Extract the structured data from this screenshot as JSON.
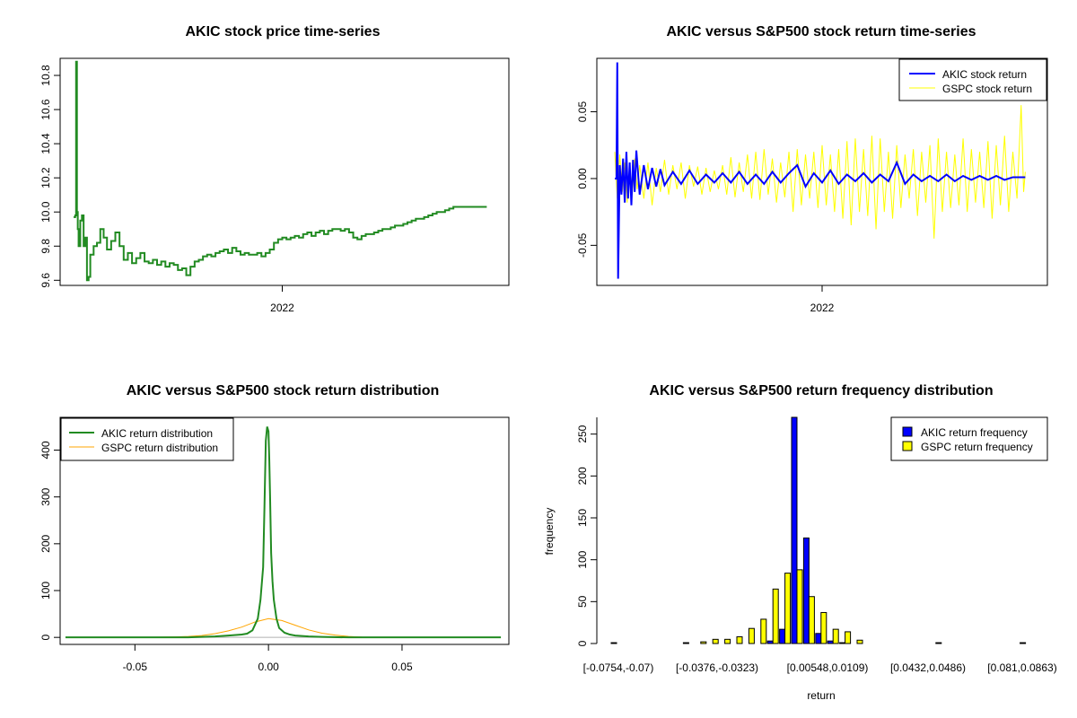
{
  "chart_data": [
    {
      "type": "line",
      "title": "AKIC stock price time-series",
      "xlabel": "",
      "ylabel": "",
      "xlim": [
        0,
        500
      ],
      "ylim": [
        9.57,
        10.9
      ],
      "x_tick_labels": [
        {
          "x": 250,
          "label": "2022"
        }
      ],
      "y_ticks": [
        9.6,
        9.8,
        10.0,
        10.2,
        10.4,
        10.6,
        10.8
      ],
      "y_tick_labels": [
        "9.6",
        "9.8",
        "10.0",
        "10.2",
        "10.4",
        "10.6",
        "10.8"
      ],
      "colors": {
        "line": "#228b22"
      },
      "series": [
        {
          "x": [
            0,
            2,
            3,
            4,
            5,
            6,
            8,
            10,
            12,
            14,
            16,
            18,
            20,
            24,
            28,
            32,
            36,
            40,
            45,
            50,
            55,
            60,
            65,
            70,
            75,
            80,
            85,
            90,
            95,
            100,
            105,
            110,
            115,
            120,
            125,
            130,
            135,
            140,
            145,
            150,
            155,
            160,
            165,
            170,
            175,
            180,
            185,
            190,
            195,
            200,
            205,
            210,
            215,
            220,
            225,
            230,
            235,
            240,
            245,
            250,
            255,
            260,
            265,
            270,
            275,
            280,
            285,
            290,
            295,
            300,
            305,
            310,
            315,
            320,
            325,
            330,
            335,
            340,
            345,
            350,
            355,
            360,
            365,
            370,
            375,
            380,
            385,
            390,
            395,
            400,
            405,
            410,
            415,
            420,
            425,
            430,
            435,
            440,
            445,
            450,
            455,
            460,
            465,
            470,
            475,
            480,
            485,
            490,
            495
          ],
          "y": [
            9.97,
            9.98,
            10.88,
            10.0,
            9.9,
            9.8,
            9.95,
            9.98,
            9.8,
            9.85,
            9.6,
            9.62,
            9.75,
            9.8,
            9.82,
            9.9,
            9.85,
            9.78,
            9.83,
            9.88,
            9.8,
            9.72,
            9.76,
            9.7,
            9.73,
            9.76,
            9.71,
            9.7,
            9.72,
            9.69,
            9.71,
            9.68,
            9.7,
            9.69,
            9.66,
            9.67,
            9.63,
            9.68,
            9.71,
            9.72,
            9.74,
            9.75,
            9.74,
            9.76,
            9.77,
            9.78,
            9.76,
            9.79,
            9.77,
            9.75,
            9.76,
            9.75,
            9.75,
            9.76,
            9.74,
            9.76,
            9.78,
            9.82,
            9.84,
            9.85,
            9.84,
            9.85,
            9.86,
            9.85,
            9.87,
            9.88,
            9.86,
            9.88,
            9.89,
            9.87,
            9.89,
            9.9,
            9.9,
            9.89,
            9.9,
            9.88,
            9.85,
            9.84,
            9.86,
            9.87,
            9.87,
            9.88,
            9.89,
            9.9,
            9.9,
            9.91,
            9.92,
            9.92,
            9.93,
            9.94,
            9.95,
            9.96,
            9.96,
            9.97,
            9.98,
            9.99,
            10.0,
            10.0,
            10.01,
            10.02,
            10.03,
            10.03,
            10.03,
            10.03,
            10.03,
            10.03,
            10.03,
            10.03,
            10.03
          ]
        }
      ]
    },
    {
      "type": "line",
      "title": "AKIC versus S&P500 stock return time-series",
      "xlabel": "",
      "ylabel": "",
      "xlim": [
        0,
        500
      ],
      "ylim": [
        -0.08,
        0.09
      ],
      "x_tick_labels": [
        {
          "x": 250,
          "label": "2022"
        }
      ],
      "y_ticks": [
        -0.05,
        0.0,
        0.05
      ],
      "y_tick_labels": [
        "-0.05",
        "0.00",
        "0.05"
      ],
      "legend": {
        "position": "top-right",
        "entries": [
          "AKIC stock return",
          "GSPC stock return"
        ]
      },
      "colors": {
        "AKIC": "#0000ff",
        "GSPC": "#ffff00"
      },
      "series": [
        {
          "name": "AKIC stock return",
          "x": [
            0,
            2,
            3,
            4,
            6,
            8,
            10,
            12,
            14,
            16,
            18,
            20,
            22,
            24,
            26,
            30,
            35,
            40,
            45,
            50,
            55,
            60,
            70,
            80,
            90,
            100,
            110,
            120,
            130,
            140,
            150,
            160,
            170,
            180,
            190,
            200,
            210,
            220,
            230,
            240,
            250,
            260,
            270,
            280,
            290,
            300,
            310,
            320,
            330,
            340,
            350,
            360,
            370,
            380,
            390,
            400,
            410,
            420,
            430,
            440,
            450,
            460,
            470,
            480,
            490,
            495
          ],
          "y": [
            0.0,
            0.0,
            0.087,
            -0.075,
            0.01,
            -0.012,
            0.015,
            -0.018,
            0.02,
            -0.015,
            0.012,
            -0.02,
            0.014,
            -0.01,
            0.021,
            -0.012,
            0.01,
            -0.008,
            0.008,
            -0.006,
            0.007,
            -0.005,
            0.005,
            -0.004,
            0.006,
            -0.004,
            0.003,
            -0.003,
            0.004,
            -0.003,
            0.005,
            -0.004,
            0.003,
            -0.004,
            0.005,
            -0.003,
            0.004,
            0.01,
            -0.006,
            0.004,
            -0.003,
            0.006,
            -0.004,
            0.003,
            -0.002,
            0.004,
            -0.003,
            0.003,
            -0.002,
            0.012,
            -0.004,
            0.003,
            -0.002,
            0.002,
            -0.002,
            0.003,
            -0.002,
            0.002,
            -0.001,
            0.002,
            -0.001,
            0.002,
            -0.001,
            0.001,
            0.001,
            0.001
          ]
        },
        {
          "name": "GSPC stock return",
          "x": [
            0,
            3,
            6,
            9,
            12,
            15,
            18,
            21,
            24,
            27,
            30,
            35,
            40,
            45,
            50,
            55,
            60,
            65,
            70,
            75,
            80,
            85,
            90,
            95,
            100,
            105,
            110,
            115,
            120,
            125,
            130,
            135,
            140,
            145,
            150,
            155,
            160,
            165,
            170,
            175,
            180,
            185,
            190,
            195,
            200,
            205,
            210,
            215,
            220,
            225,
            230,
            235,
            240,
            245,
            250,
            255,
            260,
            265,
            270,
            275,
            280,
            285,
            290,
            295,
            300,
            305,
            310,
            315,
            320,
            325,
            330,
            335,
            340,
            345,
            350,
            355,
            360,
            365,
            370,
            375,
            380,
            385,
            390,
            395,
            400,
            405,
            410,
            415,
            420,
            425,
            430,
            435,
            440,
            445,
            450,
            455,
            460,
            465,
            470,
            475,
            480,
            485,
            490,
            493,
            495
          ],
          "y": [
            0.02,
            -0.015,
            0.018,
            -0.01,
            0.012,
            -0.018,
            0.009,
            -0.012,
            0.015,
            -0.008,
            0.01,
            -0.015,
            0.012,
            -0.02,
            0.008,
            -0.01,
            0.014,
            -0.012,
            0.01,
            -0.008,
            0.012,
            -0.015,
            0.01,
            -0.006,
            0.009,
            -0.012,
            0.008,
            -0.01,
            0.006,
            -0.008,
            0.01,
            -0.012,
            0.016,
            -0.014,
            0.012,
            -0.01,
            0.018,
            -0.015,
            0.02,
            -0.016,
            0.022,
            -0.012,
            0.015,
            -0.018,
            0.012,
            -0.014,
            0.02,
            -0.025,
            0.022,
            -0.02,
            0.018,
            -0.015,
            0.02,
            -0.022,
            0.025,
            -0.02,
            0.018,
            -0.025,
            0.022,
            -0.03,
            0.028,
            -0.035,
            0.03,
            -0.025,
            0.022,
            -0.028,
            0.032,
            -0.038,
            0.03,
            -0.025,
            0.02,
            -0.03,
            0.025,
            -0.022,
            0.018,
            -0.015,
            0.022,
            -0.028,
            0.02,
            -0.018,
            0.025,
            -0.045,
            0.03,
            -0.025,
            0.02,
            -0.022,
            0.018,
            -0.02,
            0.03,
            -0.025,
            0.022,
            -0.018,
            0.02,
            -0.022,
            0.028,
            -0.03,
            0.025,
            -0.02,
            0.032,
            -0.025,
            0.02,
            -0.015,
            0.055,
            -0.01,
            0.005
          ]
        }
      ]
    },
    {
      "type": "line",
      "title": "AKIC versus S&P500 stock return distribution",
      "xlabel": "",
      "ylabel": "",
      "xlim": [
        -0.078,
        0.09
      ],
      "ylim": [
        -15,
        470
      ],
      "x_ticks": [
        -0.05,
        0.0,
        0.05
      ],
      "x_tick_labels": [
        "-0.05",
        "0.00",
        "0.05"
      ],
      "y_ticks": [
        0,
        100,
        200,
        300,
        400
      ],
      "y_tick_labels": [
        "0",
        "100",
        "200",
        "300",
        "400"
      ],
      "legend": {
        "position": "top-left",
        "entries": [
          "AKIC return distribution",
          "GSPC return distribution"
        ]
      },
      "colors": {
        "AKIC": "#228b22",
        "GSPC": "#ffa500"
      },
      "series": [
        {
          "name": "AKIC return distribution",
          "x": [
            -0.076,
            -0.07,
            -0.06,
            -0.05,
            -0.04,
            -0.03,
            -0.02,
            -0.015,
            -0.01,
            -0.008,
            -0.006,
            -0.004,
            -0.003,
            -0.002,
            -0.0015,
            -0.001,
            -0.0005,
            0.0,
            0.0003,
            0.0006,
            0.001,
            0.0015,
            0.002,
            0.003,
            0.004,
            0.006,
            0.008,
            0.01,
            0.015,
            0.02,
            0.03,
            0.04,
            0.05,
            0.06,
            0.07,
            0.08,
            0.087
          ],
          "y": [
            0,
            0,
            0,
            0,
            0,
            0,
            2,
            4,
            6,
            8,
            15,
            40,
            80,
            150,
            280,
            420,
            450,
            440,
            380,
            300,
            180,
            120,
            80,
            40,
            20,
            10,
            6,
            4,
            2,
            1,
            0,
            0,
            0,
            0,
            0,
            0,
            0
          ]
        },
        {
          "name": "GSPC return distribution",
          "x": [
            -0.045,
            -0.04,
            -0.035,
            -0.03,
            -0.025,
            -0.02,
            -0.015,
            -0.01,
            -0.005,
            0.0,
            0.005,
            0.01,
            0.015,
            0.02,
            0.025,
            0.03,
            0.035
          ],
          "y": [
            0,
            0.5,
            1,
            2,
            4,
            8,
            14,
            22,
            33,
            40,
            36,
            26,
            16,
            9,
            5,
            2,
            0.5
          ]
        }
      ]
    },
    {
      "type": "bar",
      "title": "AKIC versus S&P500 return frequency distribution",
      "xlabel": "return",
      "ylabel": "frequency",
      "ylim": [
        0,
        270
      ],
      "y_ticks": [
        0,
        50,
        100,
        150,
        200,
        250
      ],
      "y_tick_labels": [
        "0",
        "50",
        "100",
        "150",
        "200",
        "250"
      ],
      "x_tick_labels": [
        "[-0.0754,-0.07)",
        "[-0.0376,-0.0323)",
        "[0.00548,0.0109)",
        "[0.0432,0.0486)",
        "[0.081,0.0863)"
      ],
      "legend": {
        "position": "top-right",
        "entries": [
          "AKIC return frequency",
          "GSPC return frequency"
        ]
      },
      "colors": {
        "AKIC": "#0000ff",
        "GSPC": "#ffff00"
      },
      "series": [
        {
          "name": "AKIC return frequency",
          "values": [
            1,
            0,
            0,
            0,
            0,
            0,
            1,
            0,
            0,
            0,
            0,
            0,
            0,
            3,
            17,
            270,
            126,
            12,
            3,
            1,
            0,
            0,
            0,
            0,
            0,
            0,
            0,
            1,
            0,
            0,
            0,
            0,
            0,
            0,
            1
          ]
        },
        {
          "name": "GSPC return frequency",
          "values": [
            0,
            0,
            0,
            0,
            0,
            0,
            0,
            2,
            5,
            5,
            8,
            18,
            29,
            65,
            84,
            88,
            56,
            37,
            17,
            14,
            4,
            0,
            0,
            0,
            0,
            0,
            0,
            0,
            0,
            0,
            0,
            0,
            0,
            0,
            0
          ]
        }
      ]
    }
  ]
}
